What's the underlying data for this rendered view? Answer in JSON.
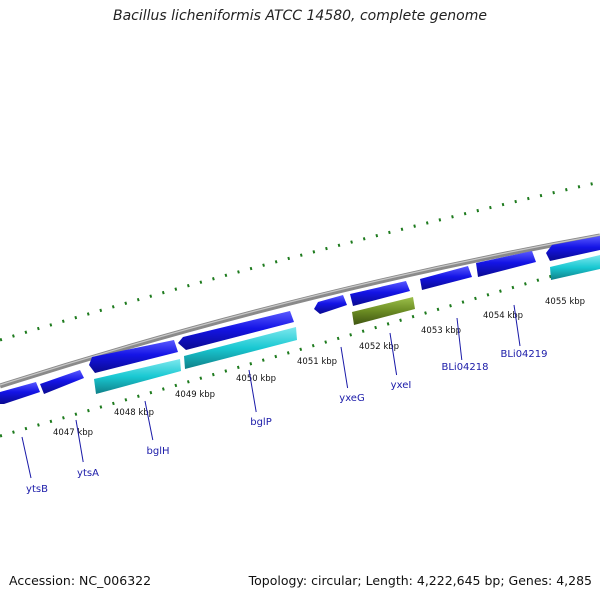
{
  "title": "Bacillus licheniformis ATCC 14580, complete genome",
  "footer": {
    "accession": "Accession: NC_006322",
    "topology": "Topology: circular; Length: 4,222,645 bp; Genes: 4,285"
  },
  "colors": {
    "backbone": "#8a8a8a",
    "tick_mark": "#1e7b1e",
    "gene_forward": "#1414e6",
    "gene_cds": "#19c8d2",
    "gene_rna": "#6b8c23",
    "gene_label": "#1a1aa8",
    "kbp_label": "#111111"
  },
  "kbp_ticks": [
    {
      "text": "4047 kbp"
    },
    {
      "text": "4048 kbp"
    },
    {
      "text": "4049 kbp"
    },
    {
      "text": "4050 kbp"
    },
    {
      "text": "4051 kbp"
    },
    {
      "text": "4052 kbp"
    },
    {
      "text": "4053 kbp"
    },
    {
      "text": "4054 kbp"
    },
    {
      "text": "4055 kbp"
    }
  ],
  "genes": [
    {
      "name": "ytsB"
    },
    {
      "name": "ytsA"
    },
    {
      "name": "bglH"
    },
    {
      "name": "bglP"
    },
    {
      "name": "yxeG"
    },
    {
      "name": "yxeI"
    },
    {
      "name": "BLi04218"
    },
    {
      "name": "BLi04219"
    }
  ]
}
